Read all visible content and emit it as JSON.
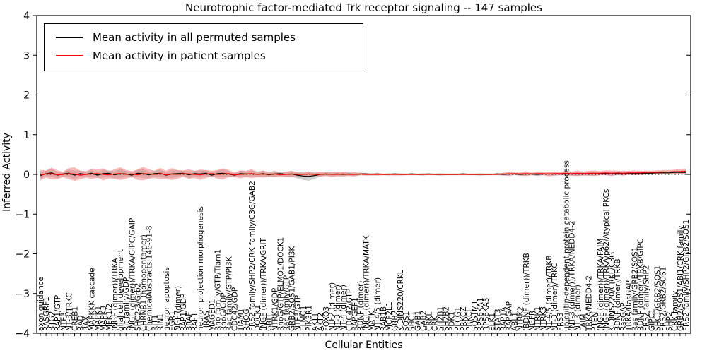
{
  "figure": {
    "title": "Neurotrophic factor-mediated Trk receptor signaling -- 147 samples",
    "xlabel": "Cellular Entities",
    "ylabel": "Inferred Activity"
  },
  "legend": {
    "items": [
      {
        "label": "Mean activity in all permuted samples",
        "color": "#000000"
      },
      {
        "label": "Mean activity in patient samples",
        "color": "#ff0000"
      }
    ]
  },
  "chart_data": {
    "type": "line",
    "title": "Neurotrophic factor-mediated Trk receptor signaling -- 147 samples",
    "xlabel": "Cellular Entities",
    "ylabel": "Inferred Activity",
    "ylim": [
      -4,
      4
    ],
    "yticks": [
      4,
      3,
      2,
      1,
      0,
      -1,
      -2,
      -3,
      -4
    ],
    "ytick_labels": [
      "4",
      "3",
      "2",
      "1",
      "0",
      "−1",
      "−2",
      "−3",
      "−4"
    ],
    "grid": false,
    "zero_line_style": "dotted",
    "legend_position": "upper left",
    "colors": {
      "permuted_mean": "#000000",
      "patient_mean": "#ff0000",
      "permuted_band": "#aaaaaa",
      "patient_band": "#f08080"
    },
    "categories": [
      "axon guidance",
      "RASGRF1",
      "BTG2",
      "RAP1/GTP",
      "NTF3",
      "NT-3/TRKC",
      "CREB1",
      "BAD",
      "BAX",
      "MAPKKK cascade",
      "MAPK1",
      "MAPK3",
      "MEK1/2",
      "(NGF (dimer))/TRKA",
      "glial cell development",
      "Rit family/GDP",
      "(NGF (dimer))/TRKA/GIPC/GAIP",
      "SHC2-3/Grb2",
      "CHRNB1 (homopentamer)",
      "ChemicalAbstracts:146-91-8",
      "RIT1",
      "RIN1",
      "neuron apoptosis",
      "EGR1",
      "NGF (dimer)",
      "RAP1/GDP",
      "BRAF",
      "RAF1",
      "neuron projection morphogenesis",
      "HRAS",
      "MAGED1",
      "Rho family/GTP/Tiam1",
      "RhoG/GDP",
      "Rac family/GTP/PI3K",
      "CDC42/GDP",
      "TIAM1",
      "RHOG",
      "FRS2 family/SHP2/CRK family/C3G/GAB2",
      "DOCK1",
      "(NGF (dimer))/TRKA/GRIT",
      "GRIT",
      "NTRK1/GDP",
      "RhoG/GTP/ELMO1/DOCK1",
      "Rac family/GTP",
      "GRB2/SOS1/GAB1/PI3K",
      "NTF3/GTP",
      "ELMO1",
      "PIK3R1",
      "AKT1",
      "AKT2",
      "FOXO3",
      "NTF2 (dimer)",
      "NT-3 (dimer)",
      "NT-4 (dimer)",
      "CDC42/GTP",
      "RAPGEF1",
      "BDNF (dimer)",
      "(NGF (dimer))/TRKA/MATK",
      "MATK",
      "NT-4/5 (dimer)",
      "RAB1B",
      "MCF2L1",
      "GRB2",
      "KIDINS220/CRKL",
      "SOS1",
      "SHC1",
      "GAB1",
      "GAB2",
      "CRKL",
      "CRK",
      "SH2B1",
      "SH2B2",
      "PDK1",
      "PLCG1",
      "PRKCZ",
      "PRKCI",
      "SQSTM1",
      "RPS6KA1",
      "RPS6KA5",
      "ELK1",
      "STAT3",
      "RAP1A",
      "RAPGAP",
      "ABL1",
      "NTRK2",
      "(BDNF (dimer))/TRKB",
      "NGFR",
      "NTRK1",
      "NTRK3",
      "NT-4/5 (dimer)/TRKB",
      "NT-3 (dimer)/TRKC",
      "FRS3",
      "ubiquitin-dependent protein catabolic process",
      "(NT-3 (dimer))/TRKA/NEDD4-2",
      "NT-3 (dimer)",
      "FAIM",
      "TRKA/NEDD4-2",
      "PTEN",
      "(NGF (dimer))/TRKA/FAIM",
      "(NGF (dimer))/TRKA/p62/Atypical PKCs",
      "KIDINS220/CRKL/C3G",
      "BDNF (dimer)/TRKB",
      "RasGAP",
      "TRKA/RasGAP",
      "Ras family/GRB2/SOS1",
      "BDNF (dimer)/TRKB/GIPC",
      "FRS2 family/SHP2",
      "GIPC1",
      "SHC1/GRB2/SOS1",
      "FRS2/GRB2/SOS1",
      "SHP2",
      "CRK family",
      "GRB2/SOS1/ABI1/CRK family",
      "FRS2 family/SHP2/GRB2/SOS1"
    ],
    "series": [
      {
        "name": "Mean activity in all permuted samples",
        "values": [
          -0.03,
          0.02,
          0.04,
          -0.02,
          0.01,
          0.03,
          -0.02,
          0.02,
          0.0,
          0.03,
          -0.02,
          0.02,
          0.03,
          -0.01,
          0.02,
          0.01,
          -0.02,
          0.03,
          0.02,
          -0.01,
          0.02,
          0.03,
          -0.02,
          0.01,
          0.02,
          0.03,
          -0.01,
          0.02,
          0.01,
          0.03,
          -0.02,
          0.02,
          0.03,
          0.01,
          -0.02,
          0.02,
          0.01,
          0.02,
          0.0,
          0.02,
          -0.01,
          0.01,
          0.02,
          0.0,
          0.01,
          -0.02,
          -0.04,
          -0.05,
          -0.03,
          0.0,
          0.01,
          0.0,
          0.01,
          0.0,
          0.01,
          0.0,
          0.01,
          0.01,
          0.0,
          0.01,
          0.0,
          0.0,
          0.01,
          0.0,
          0.0,
          0.01,
          0.0,
          0.0,
          0.01,
          0.0,
          0.0,
          0.0,
          0.0,
          0.0,
          0.01,
          0.0,
          0.0,
          0.0,
          0.0,
          0.0,
          0.01,
          0.0,
          0.01,
          0.01,
          0.0,
          0.01,
          0.01,
          0.0,
          0.01,
          0.01,
          0.01,
          0.01,
          0.02,
          0.01,
          0.01,
          0.02,
          0.01,
          0.02,
          0.02,
          0.02,
          0.02,
          0.02,
          0.02,
          0.03,
          0.02,
          0.03,
          0.03,
          0.03,
          0.04,
          0.04,
          0.04,
          0.05,
          0.05,
          0.05
        ]
      },
      {
        "name": "Mean activity in patient samples",
        "values": [
          -0.02,
          0.01,
          0.02,
          -0.01,
          0.0,
          0.02,
          0.01,
          -0.02,
          0.0,
          0.01,
          0.02,
          0.0,
          -0.01,
          0.01,
          0.02,
          0.0,
          0.01,
          -0.01,
          0.02,
          0.01,
          0.0,
          0.02,
          -0.01,
          0.01,
          0.0,
          0.02,
          0.01,
          0.0,
          -0.01,
          0.01,
          0.02,
          0.0,
          0.01,
          0.02,
          -0.01,
          0.0,
          0.01,
          0.02,
          0.0,
          0.01,
          0.0,
          0.01,
          -0.01,
          0.0,
          0.01,
          0.0,
          0.0,
          0.01,
          0.0,
          0.0,
          0.01,
          0.0,
          0.0,
          0.01,
          0.0,
          0.0,
          0.01,
          0.0,
          0.0,
          0.0,
          0.0,
          0.0,
          0.0,
          0.0,
          0.0,
          0.0,
          0.0,
          0.0,
          0.0,
          0.0,
          0.0,
          0.0,
          0.0,
          0.0,
          0.0,
          0.0,
          0.0,
          0.0,
          0.0,
          0.0,
          0.0,
          0.01,
          0.01,
          0.02,
          0.01,
          0.02,
          0.01,
          0.02,
          0.02,
          0.01,
          0.02,
          0.02,
          0.03,
          0.02,
          0.03,
          0.02,
          0.03,
          0.03,
          0.03,
          0.04,
          0.03,
          0.04,
          0.03,
          0.04,
          0.04,
          0.04,
          0.05,
          0.05,
          0.05,
          0.06,
          0.06,
          0.07,
          0.07,
          0.08
        ]
      }
    ],
    "bands": [
      {
        "name": "permuted std band",
        "color_key": "permuted_band",
        "half_width": [
          0.09,
          0.07,
          0.1,
          0.08,
          0.06,
          0.09,
          0.11,
          0.08,
          0.06,
          0.09,
          0.07,
          0.1,
          0.07,
          0.09,
          0.11,
          0.08,
          0.06,
          0.09,
          0.11,
          0.08,
          0.07,
          0.09,
          0.07,
          0.1,
          0.08,
          0.06,
          0.09,
          0.07,
          0.09,
          0.08,
          0.06,
          0.08,
          0.1,
          0.07,
          0.05,
          0.08,
          0.06,
          0.08,
          0.06,
          0.07,
          0.05,
          0.07,
          0.05,
          0.06,
          0.07,
          0.08,
          0.1,
          0.11,
          0.08,
          0.05,
          0.04,
          0.05,
          0.04,
          0.05,
          0.04,
          0.05,
          0.03,
          0.03,
          0.03,
          0.03,
          0.02,
          0.03,
          0.02,
          0.03,
          0.02,
          0.03,
          0.02,
          0.03,
          0.02,
          0.02,
          0.03,
          0.02,
          0.02,
          0.02,
          0.03,
          0.02,
          0.02,
          0.03,
          0.02,
          0.02,
          0.03,
          0.03,
          0.04,
          0.03,
          0.03,
          0.04,
          0.03,
          0.04,
          0.03,
          0.04,
          0.04,
          0.03,
          0.04,
          0.04,
          0.05,
          0.04,
          0.04,
          0.05,
          0.04,
          0.04,
          0.05,
          0.04,
          0.04,
          0.04,
          0.04,
          0.04,
          0.04,
          0.03,
          0.04,
          0.04,
          0.04,
          0.04,
          0.05,
          0.05,
          0.05
        ]
      },
      {
        "name": "patient std band",
        "color_key": "patient_band",
        "half_width": [
          0.13,
          0.09,
          0.15,
          0.11,
          0.07,
          0.14,
          0.17,
          0.11,
          0.08,
          0.13,
          0.1,
          0.15,
          0.09,
          0.12,
          0.16,
          0.11,
          0.07,
          0.13,
          0.17,
          0.12,
          0.09,
          0.14,
          0.1,
          0.15,
          0.11,
          0.08,
          0.12,
          0.09,
          0.13,
          0.1,
          0.07,
          0.11,
          0.14,
          0.09,
          0.06,
          0.1,
          0.08,
          0.11,
          0.07,
          0.09,
          0.06,
          0.08,
          0.05,
          0.07,
          0.08,
          0.05,
          0.04,
          0.05,
          0.04,
          0.06,
          0.05,
          0.07,
          0.05,
          0.06,
          0.04,
          0.05,
          0.03,
          0.03,
          0.02,
          0.03,
          0.02,
          0.02,
          0.03,
          0.02,
          0.02,
          0.02,
          0.02,
          0.02,
          0.02,
          0.02,
          0.02,
          0.02,
          0.02,
          0.02,
          0.02,
          0.02,
          0.02,
          0.02,
          0.02,
          0.02,
          0.02,
          0.03,
          0.05,
          0.03,
          0.04,
          0.06,
          0.03,
          0.05,
          0.04,
          0.06,
          0.05,
          0.04,
          0.06,
          0.05,
          0.07,
          0.05,
          0.06,
          0.07,
          0.05,
          0.06,
          0.07,
          0.05,
          0.06,
          0.05,
          0.06,
          0.05,
          0.05,
          0.04,
          0.05,
          0.05,
          0.05,
          0.05,
          0.06,
          0.06,
          0.06
        ]
      }
    ]
  }
}
